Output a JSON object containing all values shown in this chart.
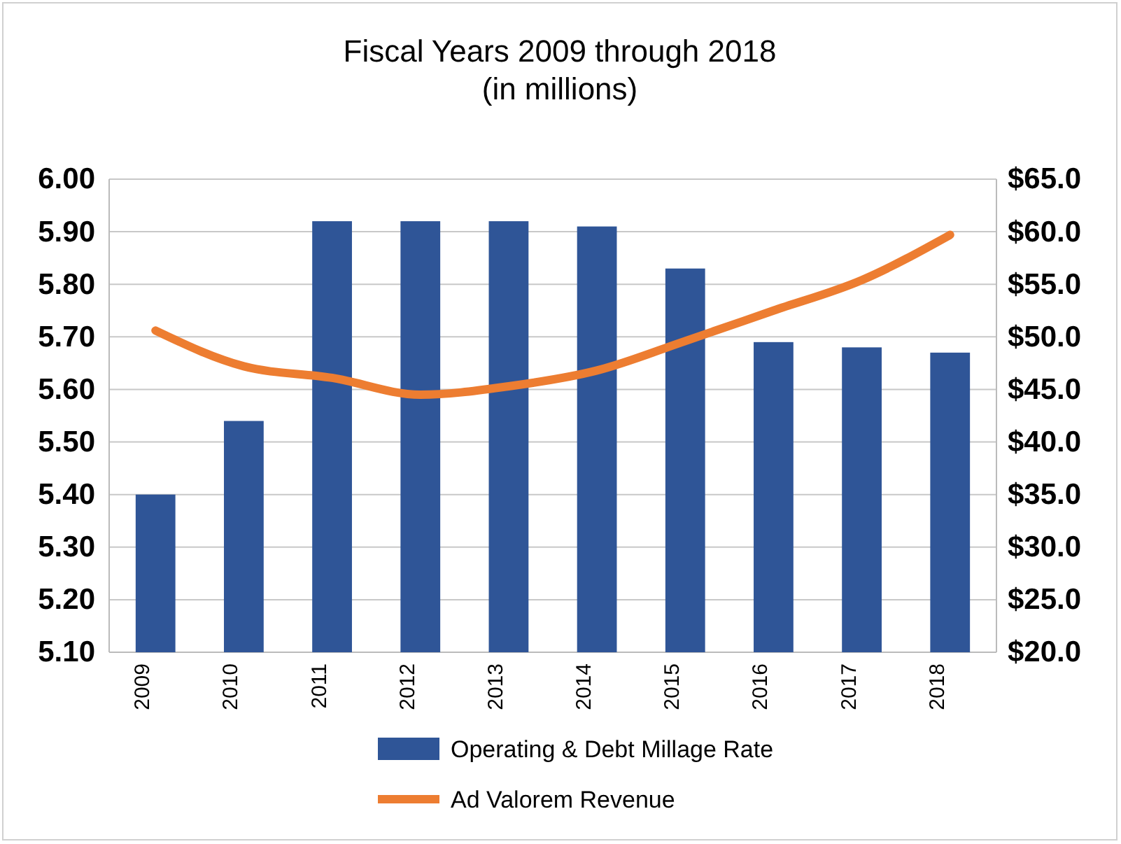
{
  "chart_data": {
    "type": "bar",
    "title": "Fiscal Years 2009 through 2018\n(in millions)",
    "categories": [
      "2009",
      "2010",
      "2011",
      "2012",
      "2013",
      "2014",
      "2015",
      "2016",
      "2017",
      "2018"
    ],
    "series": [
      {
        "name": "Operating & Debt Millage Rate",
        "color": "#2f5597",
        "values": [
          5.4,
          5.54,
          5.92,
          5.92,
          5.92,
          5.91,
          5.83,
          5.69,
          5.68,
          5.67
        ]
      },
      {
        "name": "Ad Valorem Revenue",
        "type": "line",
        "axis": "y2",
        "color": "#ed7d31",
        "values": [
          50.6,
          47.2,
          46.1,
          44.5,
          45.3,
          46.8,
          49.6,
          52.5,
          55.4,
          59.7
        ]
      }
    ],
    "ylim": [
      5.1,
      6.0
    ],
    "yticks": [
      {
        "value": 5.1,
        "label": "5.10"
      },
      {
        "value": 5.2,
        "label": "5.20"
      },
      {
        "value": 5.3,
        "label": "5.30"
      },
      {
        "value": 5.4,
        "label": "5.40"
      },
      {
        "value": 5.5,
        "label": "5.50"
      },
      {
        "value": 5.6,
        "label": "5.60"
      },
      {
        "value": 5.7,
        "label": "5.70"
      },
      {
        "value": 5.8,
        "label": "5.80"
      },
      {
        "value": 5.9,
        "label": "5.90"
      },
      {
        "value": 6.0,
        "label": "6.00"
      }
    ],
    "y2lim": [
      20,
      65
    ],
    "y2ticks": [
      {
        "value": 20,
        "label": "$20.0"
      },
      {
        "value": 25,
        "label": "$25.0"
      },
      {
        "value": 30,
        "label": "$30.0"
      },
      {
        "value": 35,
        "label": "$35.0"
      },
      {
        "value": 40,
        "label": "$40.0"
      },
      {
        "value": 45,
        "label": "$45.0"
      },
      {
        "value": 50,
        "label": "$50.0"
      },
      {
        "value": 55,
        "label": "$55.0"
      },
      {
        "value": 60,
        "label": "$60.0"
      },
      {
        "value": 65,
        "label": "$65.0"
      }
    ],
    "grid": "y",
    "legend": "bottom",
    "line_style": "solid",
    "marker": "none"
  }
}
